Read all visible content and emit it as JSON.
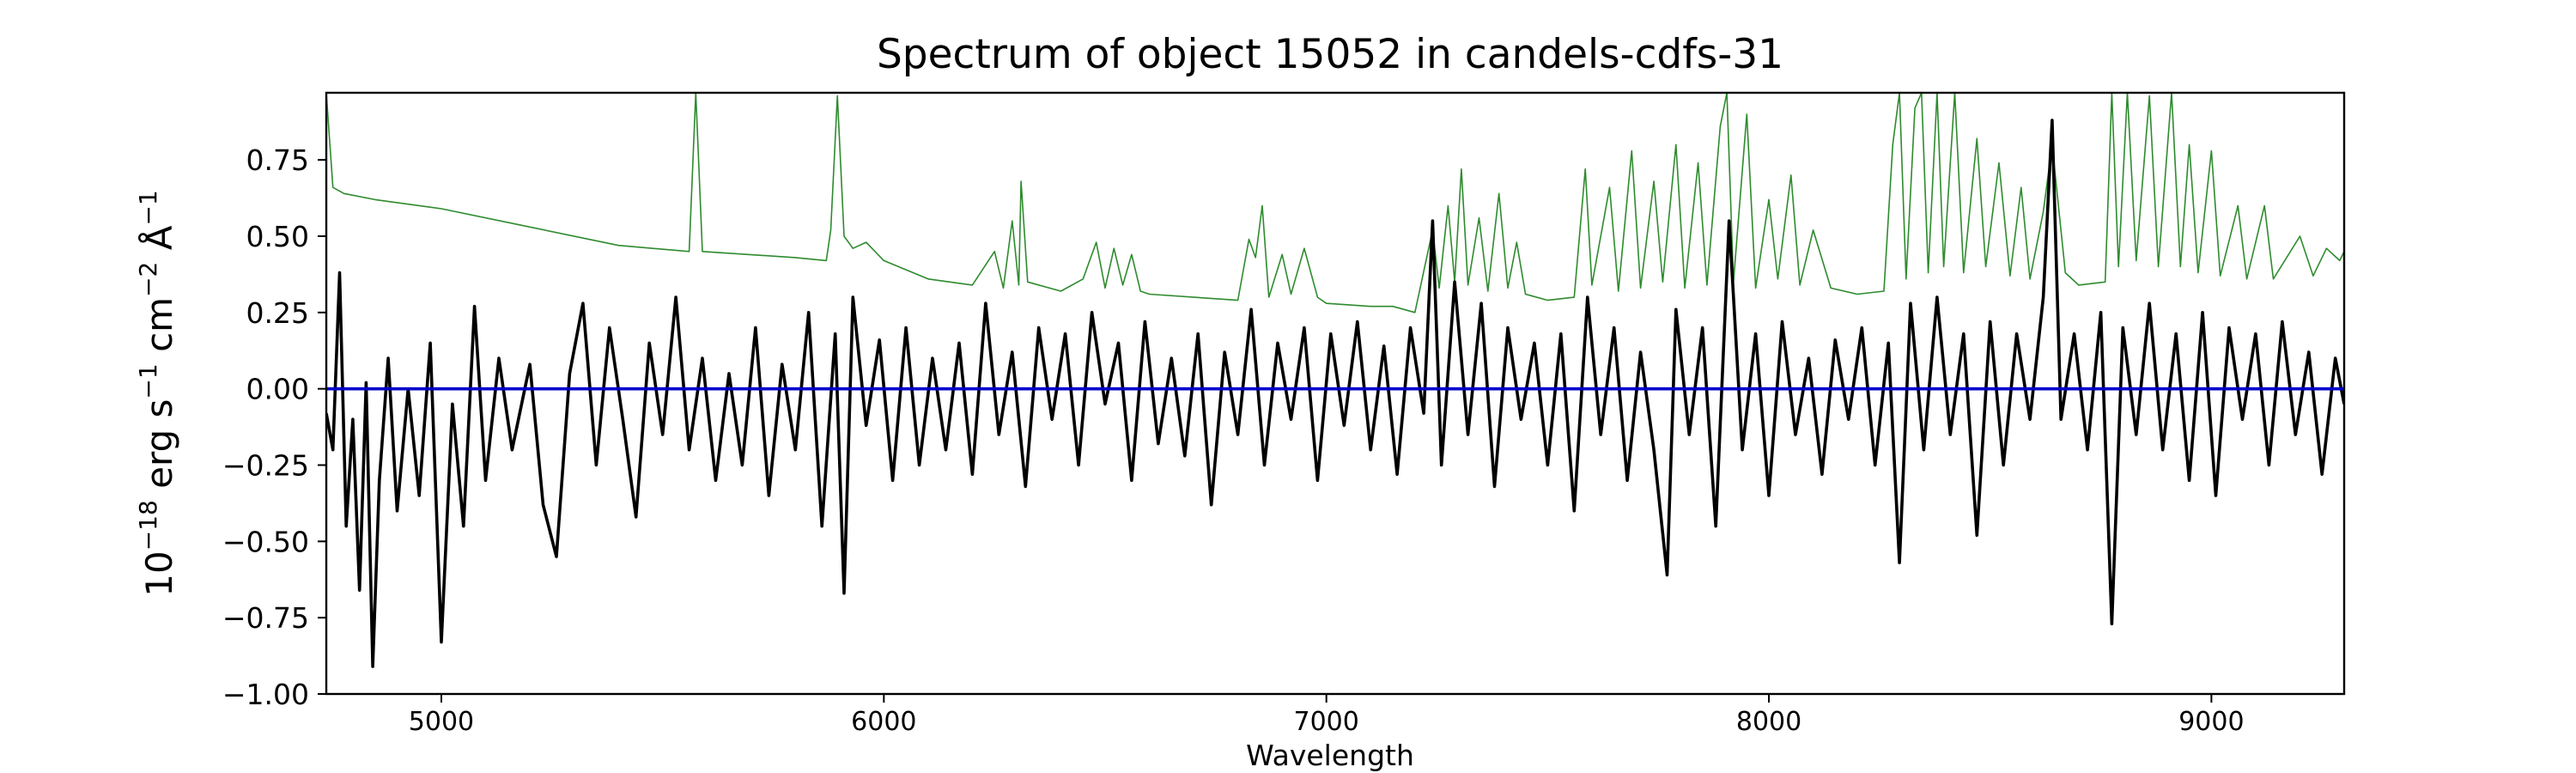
{
  "chart_data": {
    "type": "line",
    "title": "Spectrum of object 15052 in candels-cdfs-31",
    "xlabel": "Wavelength",
    "ylabel_parts": {
      "base": "10",
      "exp1": "−18",
      "unit1": " erg s",
      "exp2": "−1",
      "unit2": " cm",
      "exp3": "−2",
      "unit3": " Å",
      "exp4": "−1"
    },
    "xlim": [
      4740,
      9300
    ],
    "ylim": [
      -1.0,
      0.97
    ],
    "x_ticks": [
      5000,
      6000,
      7000,
      8000,
      9000
    ],
    "x_tick_labels": [
      "5000",
      "6000",
      "7000",
      "8000",
      "9000"
    ],
    "y_ticks": [
      0.75,
      0.5,
      0.25,
      0.0,
      -0.25,
      -0.5,
      -0.75,
      -1.0
    ],
    "y_tick_labels": [
      "0.75",
      "0.50",
      "0.25",
      "0.00",
      "−0.25",
      "−0.50",
      "−0.75",
      "−1.00"
    ],
    "grid": false,
    "legend": "none",
    "series": [
      {
        "role": "error",
        "color": "#2e8b2e",
        "points": [
          [
            4740,
            0.97
          ],
          [
            4755,
            0.66
          ],
          [
            4780,
            0.64
          ],
          [
            4850,
            0.62
          ],
          [
            5000,
            0.59
          ],
          [
            5200,
            0.53
          ],
          [
            5400,
            0.47
          ],
          [
            5560,
            0.45
          ],
          [
            5575,
            0.97
          ],
          [
            5590,
            0.45
          ],
          [
            5800,
            0.43
          ],
          [
            5870,
            0.42
          ],
          [
            5880,
            0.52
          ],
          [
            5895,
            0.96
          ],
          [
            5910,
            0.5
          ],
          [
            5930,
            0.46
          ],
          [
            5960,
            0.48
          ],
          [
            6000,
            0.42
          ],
          [
            6100,
            0.36
          ],
          [
            6200,
            0.34
          ],
          [
            6250,
            0.45
          ],
          [
            6270,
            0.33
          ],
          [
            6290,
            0.55
          ],
          [
            6305,
            0.34
          ],
          [
            6310,
            0.68
          ],
          [
            6325,
            0.35
          ],
          [
            6400,
            0.32
          ],
          [
            6450,
            0.36
          ],
          [
            6480,
            0.48
          ],
          [
            6500,
            0.33
          ],
          [
            6520,
            0.46
          ],
          [
            6540,
            0.34
          ],
          [
            6560,
            0.44
          ],
          [
            6580,
            0.32
          ],
          [
            6600,
            0.31
          ],
          [
            6800,
            0.29
          ],
          [
            6825,
            0.49
          ],
          [
            6840,
            0.43
          ],
          [
            6855,
            0.6
          ],
          [
            6870,
            0.3
          ],
          [
            6900,
            0.44
          ],
          [
            6920,
            0.31
          ],
          [
            6950,
            0.46
          ],
          [
            6980,
            0.3
          ],
          [
            7000,
            0.28
          ],
          [
            7100,
            0.27
          ],
          [
            7150,
            0.27
          ],
          [
            7200,
            0.25
          ],
          [
            7240,
            0.52
          ],
          [
            7255,
            0.33
          ],
          [
            7275,
            0.6
          ],
          [
            7290,
            0.35
          ],
          [
            7305,
            0.72
          ],
          [
            7320,
            0.34
          ],
          [
            7345,
            0.56
          ],
          [
            7365,
            0.32
          ],
          [
            7390,
            0.64
          ],
          [
            7410,
            0.33
          ],
          [
            7430,
            0.48
          ],
          [
            7450,
            0.31
          ],
          [
            7500,
            0.29
          ],
          [
            7560,
            0.3
          ],
          [
            7585,
            0.72
          ],
          [
            7600,
            0.34
          ],
          [
            7640,
            0.66
          ],
          [
            7660,
            0.32
          ],
          [
            7690,
            0.78
          ],
          [
            7710,
            0.33
          ],
          [
            7740,
            0.68
          ],
          [
            7760,
            0.35
          ],
          [
            7790,
            0.8
          ],
          [
            7810,
            0.33
          ],
          [
            7840,
            0.74
          ],
          [
            7860,
            0.34
          ],
          [
            7890,
            0.86
          ],
          [
            7905,
            0.97
          ],
          [
            7920,
            0.35
          ],
          [
            7950,
            0.9
          ],
          [
            7970,
            0.33
          ],
          [
            8000,
            0.62
          ],
          [
            8020,
            0.36
          ],
          [
            8050,
            0.7
          ],
          [
            8070,
            0.34
          ],
          [
            8100,
            0.52
          ],
          [
            8140,
            0.33
          ],
          [
            8200,
            0.31
          ],
          [
            8260,
            0.32
          ],
          [
            8280,
            0.8
          ],
          [
            8295,
            0.97
          ],
          [
            8310,
            0.36
          ],
          [
            8330,
            0.92
          ],
          [
            8345,
            0.97
          ],
          [
            8360,
            0.38
          ],
          [
            8380,
            0.97
          ],
          [
            8395,
            0.4
          ],
          [
            8420,
            0.97
          ],
          [
            8440,
            0.38
          ],
          [
            8470,
            0.82
          ],
          [
            8490,
            0.4
          ],
          [
            8520,
            0.74
          ],
          [
            8545,
            0.37
          ],
          [
            8570,
            0.66
          ],
          [
            8590,
            0.36
          ],
          [
            8620,
            0.58
          ],
          [
            8640,
            0.8
          ],
          [
            8670,
            0.38
          ],
          [
            8700,
            0.34
          ],
          [
            8760,
            0.35
          ],
          [
            8775,
            0.97
          ],
          [
            8790,
            0.4
          ],
          [
            8810,
            0.97
          ],
          [
            8830,
            0.42
          ],
          [
            8860,
            0.96
          ],
          [
            8880,
            0.4
          ],
          [
            8910,
            0.97
          ],
          [
            8930,
            0.4
          ],
          [
            8950,
            0.8
          ],
          [
            8970,
            0.38
          ],
          [
            9000,
            0.78
          ],
          [
            9020,
            0.37
          ],
          [
            9060,
            0.6
          ],
          [
            9080,
            0.36
          ],
          [
            9120,
            0.6
          ],
          [
            9140,
            0.36
          ],
          [
            9200,
            0.5
          ],
          [
            9230,
            0.37
          ],
          [
            9260,
            0.46
          ],
          [
            9290,
            0.42
          ],
          [
            9300,
            0.45
          ]
        ]
      },
      {
        "role": "flux",
        "color": "#000000",
        "points": [
          [
            4740,
            -0.08
          ],
          [
            4755,
            -0.2
          ],
          [
            4770,
            0.38
          ],
          [
            4785,
            -0.45
          ],
          [
            4800,
            -0.1
          ],
          [
            4815,
            -0.66
          ],
          [
            4830,
            0.02
          ],
          [
            4845,
            -0.91
          ],
          [
            4860,
            -0.3
          ],
          [
            4880,
            0.1
          ],
          [
            4900,
            -0.4
          ],
          [
            4925,
            0.0
          ],
          [
            4950,
            -0.35
          ],
          [
            4975,
            0.15
          ],
          [
            5000,
            -0.83
          ],
          [
            5025,
            -0.05
          ],
          [
            5050,
            -0.45
          ],
          [
            5075,
            0.27
          ],
          [
            5100,
            -0.3
          ],
          [
            5130,
            0.1
          ],
          [
            5160,
            -0.2
          ],
          [
            5200,
            0.08
          ],
          [
            5230,
            -0.38
          ],
          [
            5260,
            -0.55
          ],
          [
            5290,
            0.05
          ],
          [
            5320,
            0.28
          ],
          [
            5350,
            -0.25
          ],
          [
            5380,
            0.2
          ],
          [
            5410,
            -0.1
          ],
          [
            5440,
            -0.42
          ],
          [
            5470,
            0.15
          ],
          [
            5500,
            -0.15
          ],
          [
            5530,
            0.3
          ],
          [
            5560,
            -0.2
          ],
          [
            5590,
            0.1
          ],
          [
            5620,
            -0.3
          ],
          [
            5650,
            0.05
          ],
          [
            5680,
            -0.25
          ],
          [
            5710,
            0.2
          ],
          [
            5740,
            -0.35
          ],
          [
            5770,
            0.08
          ],
          [
            5800,
            -0.2
          ],
          [
            5830,
            0.25
          ],
          [
            5860,
            -0.45
          ],
          [
            5890,
            0.18
          ],
          [
            5910,
            -0.67
          ],
          [
            5930,
            0.3
          ],
          [
            5960,
            -0.12
          ],
          [
            5990,
            0.16
          ],
          [
            6020,
            -0.3
          ],
          [
            6050,
            0.2
          ],
          [
            6080,
            -0.25
          ],
          [
            6110,
            0.1
          ],
          [
            6140,
            -0.2
          ],
          [
            6170,
            0.15
          ],
          [
            6200,
            -0.28
          ],
          [
            6230,
            0.28
          ],
          [
            6260,
            -0.15
          ],
          [
            6290,
            0.12
          ],
          [
            6320,
            -0.32
          ],
          [
            6350,
            0.2
          ],
          [
            6380,
            -0.1
          ],
          [
            6410,
            0.18
          ],
          [
            6440,
            -0.25
          ],
          [
            6470,
            0.25
          ],
          [
            6500,
            -0.05
          ],
          [
            6530,
            0.15
          ],
          [
            6560,
            -0.3
          ],
          [
            6590,
            0.22
          ],
          [
            6620,
            -0.18
          ],
          [
            6650,
            0.1
          ],
          [
            6680,
            -0.22
          ],
          [
            6710,
            0.18
          ],
          [
            6740,
            -0.38
          ],
          [
            6770,
            0.12
          ],
          [
            6800,
            -0.15
          ],
          [
            6830,
            0.26
          ],
          [
            6860,
            -0.25
          ],
          [
            6890,
            0.15
          ],
          [
            6920,
            -0.1
          ],
          [
            6950,
            0.2
          ],
          [
            6980,
            -0.3
          ],
          [
            7010,
            0.18
          ],
          [
            7040,
            -0.12
          ],
          [
            7070,
            0.22
          ],
          [
            7100,
            -0.2
          ],
          [
            7130,
            0.14
          ],
          [
            7160,
            -0.28
          ],
          [
            7190,
            0.2
          ],
          [
            7220,
            -0.08
          ],
          [
            7240,
            0.55
          ],
          [
            7260,
            -0.25
          ],
          [
            7290,
            0.35
          ],
          [
            7320,
            -0.15
          ],
          [
            7350,
            0.28
          ],
          [
            7380,
            -0.32
          ],
          [
            7410,
            0.2
          ],
          [
            7440,
            -0.1
          ],
          [
            7470,
            0.15
          ],
          [
            7500,
            -0.25
          ],
          [
            7530,
            0.18
          ],
          [
            7560,
            -0.4
          ],
          [
            7590,
            0.3
          ],
          [
            7620,
            -0.15
          ],
          [
            7650,
            0.2
          ],
          [
            7680,
            -0.3
          ],
          [
            7710,
            0.12
          ],
          [
            7740,
            -0.2
          ],
          [
            7770,
            -0.61
          ],
          [
            7790,
            0.26
          ],
          [
            7820,
            -0.15
          ],
          [
            7850,
            0.2
          ],
          [
            7880,
            -0.45
          ],
          [
            7910,
            0.55
          ],
          [
            7940,
            -0.2
          ],
          [
            7970,
            0.18
          ],
          [
            8000,
            -0.35
          ],
          [
            8030,
            0.22
          ],
          [
            8060,
            -0.15
          ],
          [
            8090,
            0.1
          ],
          [
            8120,
            -0.28
          ],
          [
            8150,
            0.16
          ],
          [
            8180,
            -0.1
          ],
          [
            8210,
            0.2
          ],
          [
            8240,
            -0.25
          ],
          [
            8270,
            0.15
          ],
          [
            8295,
            -0.57
          ],
          [
            8320,
            0.28
          ],
          [
            8350,
            -0.2
          ],
          [
            8380,
            0.3
          ],
          [
            8410,
            -0.15
          ],
          [
            8440,
            0.18
          ],
          [
            8470,
            -0.48
          ],
          [
            8500,
            0.22
          ],
          [
            8530,
            -0.25
          ],
          [
            8560,
            0.18
          ],
          [
            8590,
            -0.1
          ],
          [
            8620,
            0.3
          ],
          [
            8640,
            0.88
          ],
          [
            8660,
            -0.1
          ],
          [
            8690,
            0.18
          ],
          [
            8720,
            -0.2
          ],
          [
            8750,
            0.25
          ],
          [
            8775,
            -0.77
          ],
          [
            8800,
            0.2
          ],
          [
            8830,
            -0.15
          ],
          [
            8860,
            0.28
          ],
          [
            8890,
            -0.2
          ],
          [
            8920,
            0.18
          ],
          [
            8950,
            -0.3
          ],
          [
            8980,
            0.25
          ],
          [
            9010,
            -0.35
          ],
          [
            9040,
            0.2
          ],
          [
            9070,
            -0.1
          ],
          [
            9100,
            0.18
          ],
          [
            9130,
            -0.25
          ],
          [
            9160,
            0.22
          ],
          [
            9190,
            -0.15
          ],
          [
            9220,
            0.12
          ],
          [
            9250,
            -0.28
          ],
          [
            9280,
            0.1
          ],
          [
            9300,
            -0.05
          ]
        ]
      },
      {
        "role": "model",
        "color": "#0000cc",
        "points": [
          [
            4740,
            0.0
          ],
          [
            9300,
            0.0
          ]
        ]
      }
    ]
  }
}
